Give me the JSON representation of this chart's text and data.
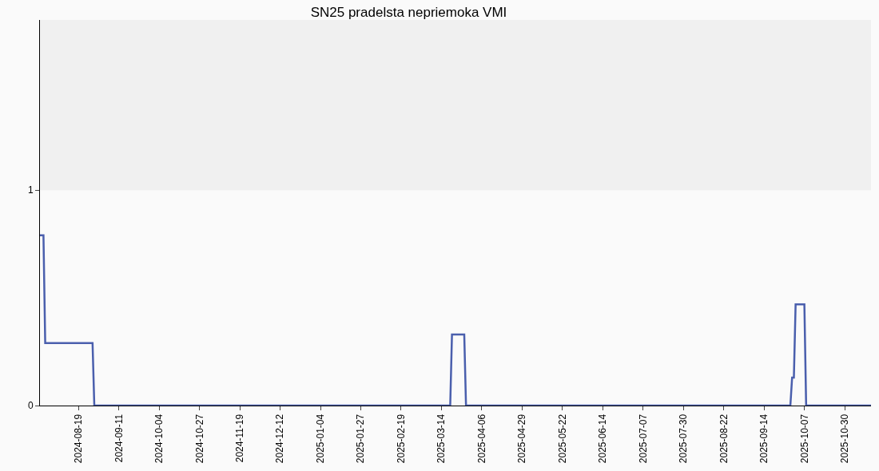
{
  "chart_data": {
    "type": "line",
    "title": "SN25 pradelsta nepriemoka VMI",
    "x": [
      "2024-07-28",
      "2024-07-30",
      "2024-07-31",
      "2024-08-27",
      "2024-08-28",
      "2025-03-19",
      "2025-03-20",
      "2025-03-27",
      "2025-03-28",
      "2025-09-29",
      "2025-09-30",
      "2025-10-01",
      "2025-10-02",
      "2025-10-07",
      "2025-10-08",
      "2025-11-14"
    ],
    "series": [
      {
        "color": "#4a5fad",
        "values": [
          0.79,
          0.79,
          0.29,
          0.29,
          0,
          0,
          0.33,
          0.33,
          0,
          0,
          0.13,
          0.13,
          0.47,
          0.47,
          0,
          0
        ]
      }
    ],
    "xlim": [
      "2024-07-28",
      "2025-11-14"
    ],
    "xticks": [
      "2024-08-19",
      "2024-09-11",
      "2024-10-04",
      "2024-10-27",
      "2024-11-19",
      "2024-12-12",
      "2025-01-04",
      "2025-01-27",
      "2025-02-19",
      "2025-03-14",
      "2025-04-06",
      "2025-04-29",
      "2025-05-22",
      "2025-06-14",
      "2025-07-07",
      "2025-07-30",
      "2025-08-22",
      "2025-09-14",
      "2025-10-07",
      "2025-10-30"
    ],
    "ylim": [
      0,
      1.79
    ],
    "yticks": [
      0,
      1
    ],
    "bands": [
      {
        "axis": "y",
        "from": 1,
        "to": 1.79,
        "color": "#f0f0f0"
      }
    ],
    "grid": false,
    "legend": false,
    "marker": "none",
    "line_style": "solid"
  }
}
